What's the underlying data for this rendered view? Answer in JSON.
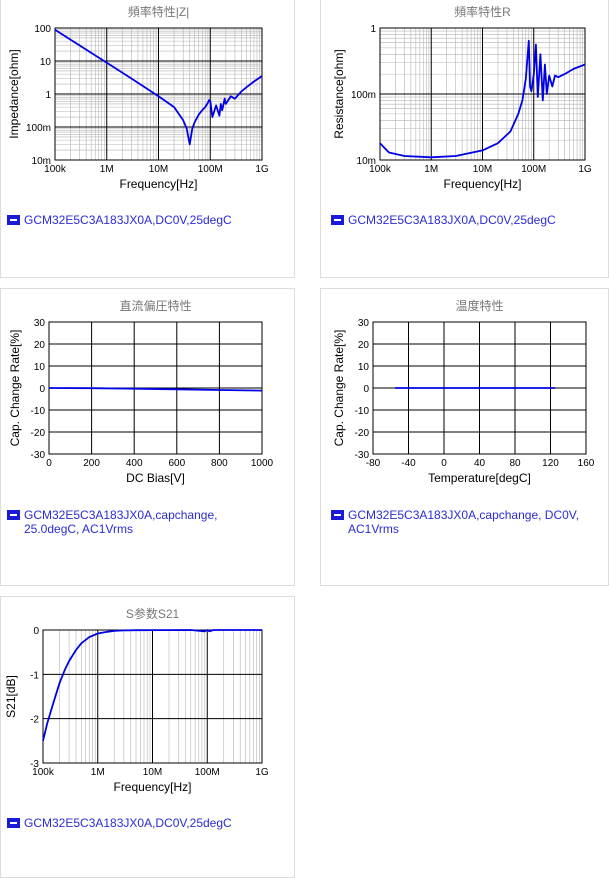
{
  "panels": [
    {
      "chart_data": {
        "type": "line",
        "title": "頻率特性|Z|",
        "xlabel": "Frequency[Hz]",
        "ylabel": "Impedance[ohm]",
        "xscale": "log",
        "yscale": "log",
        "xlim": [
          100000,
          1000000000
        ],
        "ylim": [
          0.01,
          100
        ],
        "xticks": [
          {
            "v": 100000,
            "label": "100k"
          },
          {
            "v": 1000000,
            "label": "1M"
          },
          {
            "v": 10000000,
            "label": "10M"
          },
          {
            "v": 100000000,
            "label": "100M"
          },
          {
            "v": 1000000000,
            "label": "1G"
          }
        ],
        "yticks": [
          {
            "v": 0.01,
            "label": "10m"
          },
          {
            "v": 0.1,
            "label": "100m"
          },
          {
            "v": 1,
            "label": "1"
          },
          {
            "v": 10,
            "label": "10"
          },
          {
            "v": 100,
            "label": "100"
          }
        ],
        "series": [
          {
            "name": "GCM32E5C3A183JX0A,DC0V,25degC",
            "color": "#0000e6",
            "x": [
              100000,
              300000,
              1000000,
              3000000,
              10000000,
              20000000,
              30000000,
              35000000,
              40000000,
              45000000,
              50000000,
              60000000,
              70000000,
              80000000,
              90000000,
              95000000,
              100000000,
              110000000,
              130000000,
              150000000,
              160000000,
              170000000,
              190000000,
              200000000,
              250000000,
              300000000,
              400000000,
              500000000,
              700000000,
              1000000000
            ],
            "y": [
              88,
              29.5,
              8.8,
              2.95,
              0.86,
              0.4,
              0.16,
              0.09,
              0.03,
              0.09,
              0.14,
              0.24,
              0.32,
              0.4,
              0.55,
              0.65,
              0.62,
              0.2,
              0.45,
              0.22,
              0.5,
              0.32,
              0.72,
              0.5,
              0.85,
              0.72,
              1.2,
              1.6,
              2.4,
              3.5
            ]
          }
        ]
      },
      "legend": "GCM32E5C3A183JX0A,DC0V,25degC"
    },
    {
      "chart_data": {
        "type": "line",
        "title": "頻率特性R",
        "xlabel": "Frequency[Hz]",
        "ylabel": "Resistance[ohm]",
        "xscale": "log",
        "yscale": "log",
        "xlim": [
          100000,
          1000000000
        ],
        "ylim": [
          0.01,
          1
        ],
        "xticks": [
          {
            "v": 100000,
            "label": "100k"
          },
          {
            "v": 1000000,
            "label": "1M"
          },
          {
            "v": 10000000,
            "label": "10M"
          },
          {
            "v": 100000000,
            "label": "100M"
          },
          {
            "v": 1000000000,
            "label": "1G"
          }
        ],
        "yticks": [
          {
            "v": 0.01,
            "label": "10m"
          },
          {
            "v": 0.1,
            "label": "100m"
          },
          {
            "v": 1,
            "label": "1"
          }
        ],
        "series": [
          {
            "name": "GCM32E5C3A183JX0A,DC0V,25degC",
            "color": "#0000e6",
            "x": [
              100000,
              150000,
              300000,
              1000000,
              3000000,
              10000000,
              20000000,
              35000000,
              50000000,
              60000000,
              70000000,
              80000000,
              85000000,
              90000000,
              100000000,
              110000000,
              120000000,
              135000000,
              150000000,
              165000000,
              180000000,
              200000000,
              230000000,
              260000000,
              300000000,
              400000000,
              600000000,
              1000000000
            ],
            "y": [
              0.018,
              0.013,
              0.0115,
              0.011,
              0.0115,
              0.014,
              0.018,
              0.027,
              0.05,
              0.08,
              0.17,
              0.64,
              0.13,
              0.11,
              0.2,
              0.56,
              0.09,
              0.4,
              0.08,
              0.28,
              0.1,
              0.19,
              0.13,
              0.19,
              0.18,
              0.2,
              0.24,
              0.28
            ]
          }
        ]
      },
      "legend": "GCM32E5C3A183JX0A,DC0V,25degC"
    },
    {
      "chart_data": {
        "type": "line",
        "title": "直流偏圧特性",
        "xlabel": "DC Bias[V]",
        "ylabel": "Cap. Change Rate[%]",
        "xscale": "linear",
        "yscale": "linear",
        "xlim": [
          0,
          1000
        ],
        "ylim": [
          -30,
          30
        ],
        "xticks": [
          {
            "v": 0,
            "label": "0"
          },
          {
            "v": 200,
            "label": "200"
          },
          {
            "v": 400,
            "label": "400"
          },
          {
            "v": 600,
            "label": "600"
          },
          {
            "v": 800,
            "label": "800"
          },
          {
            "v": 1000,
            "label": "1000"
          }
        ],
        "yticks": [
          {
            "v": -30,
            "label": "-30"
          },
          {
            "v": -20,
            "label": "-20"
          },
          {
            "v": -10,
            "label": "-10"
          },
          {
            "v": 0,
            "label": "0"
          },
          {
            "v": 10,
            "label": "10"
          },
          {
            "v": 20,
            "label": "20"
          },
          {
            "v": 30,
            "label": "30"
          }
        ],
        "series": [
          {
            "name": "GCM32E5C3A183JX0A,capchange, 25.0degC, AC1Vrms",
            "color": "#0000e6",
            "x": [
              0,
              200,
              400,
              600,
              800,
              1000
            ],
            "y": [
              0,
              -0.1,
              -0.3,
              -0.6,
              -0.9,
              -1.2
            ]
          }
        ]
      },
      "legend": "GCM32E5C3A183JX0A,capchange, 25.0degC, AC1Vrms"
    },
    {
      "chart_data": {
        "type": "line",
        "title": "温度特性",
        "xlabel": "Temperature[degC]",
        "ylabel": "Cap. Change Rate[%]",
        "xscale": "linear",
        "yscale": "linear",
        "xlim": [
          -80,
          160
        ],
        "ylim": [
          -30,
          30
        ],
        "xticks": [
          {
            "v": -80,
            "label": "-80"
          },
          {
            "v": -40,
            "label": "-40"
          },
          {
            "v": 0,
            "label": "0"
          },
          {
            "v": 40,
            "label": "40"
          },
          {
            "v": 80,
            "label": "80"
          },
          {
            "v": 120,
            "label": "120"
          },
          {
            "v": 160,
            "label": "160"
          }
        ],
        "yticks": [
          {
            "v": -30,
            "label": "-30"
          },
          {
            "v": -20,
            "label": "-20"
          },
          {
            "v": -10,
            "label": "-10"
          },
          {
            "v": 0,
            "label": "0"
          },
          {
            "v": 10,
            "label": "10"
          },
          {
            "v": 20,
            "label": "20"
          },
          {
            "v": 30,
            "label": "30"
          }
        ],
        "series": [
          {
            "name": "GCM32E5C3A183JX0A,capchange, DC0V, AC1Vrms",
            "color": "#0000e6",
            "x": [
              -55,
              0,
              60,
              125
            ],
            "y": [
              0,
              0,
              0,
              0
            ]
          }
        ]
      },
      "legend": "GCM32E5C3A183JX0A,capchange, DC0V, AC1Vrms"
    },
    {
      "chart_data": {
        "type": "line",
        "title": "S参数S21",
        "xlabel": "Frequency[Hz]",
        "ylabel": "S21[dB]",
        "xscale": "log",
        "yscale": "linear",
        "xlim": [
          100000,
          1000000000
        ],
        "ylim": [
          -3,
          0
        ],
        "xticks": [
          {
            "v": 100000,
            "label": "100k"
          },
          {
            "v": 1000000,
            "label": "1M"
          },
          {
            "v": 10000000,
            "label": "10M"
          },
          {
            "v": 100000000,
            "label": "100M"
          },
          {
            "v": 1000000000,
            "label": "1G"
          }
        ],
        "yticks": [
          {
            "v": -3,
            "label": "-3"
          },
          {
            "v": -2,
            "label": "-2"
          },
          {
            "v": -1,
            "label": "-1"
          },
          {
            "v": 0,
            "label": "0"
          }
        ],
        "series": [
          {
            "name": "GCM32E5C3A183JX0A,DC0V,25degC",
            "color": "#0000e6",
            "x": [
              100000,
              120000,
              150000,
              200000,
              250000,
              300000,
              400000,
              500000,
              700000,
              1000000,
              1500000,
              2000000,
              3000000,
              5000000,
              10000000,
              50000000,
              90000000,
              100000000,
              110000000,
              130000000,
              1000000000
            ],
            "y": [
              -2.5,
              -2.1,
              -1.7,
              -1.2,
              -0.9,
              -0.7,
              -0.45,
              -0.3,
              -0.16,
              -0.08,
              -0.04,
              -0.02,
              -0.01,
              -0.004,
              -0.002,
              -0.001,
              -0.03,
              0,
              -0.03,
              0,
              0
            ]
          }
        ]
      },
      "legend": "GCM32E5C3A183JX0A,DC0V,25degC"
    }
  ]
}
